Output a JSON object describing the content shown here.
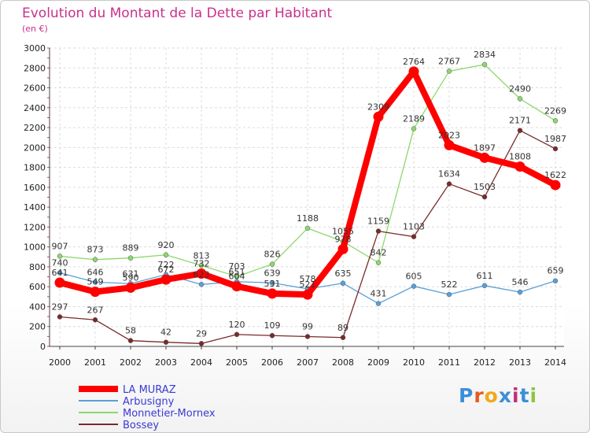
{
  "chart_data": {
    "type": "line",
    "title": "Evolution du Montant de la Dette par Habitant",
    "subtitle": "(en €)",
    "xlabel": "",
    "ylabel": "",
    "ylim": [
      0,
      3000
    ],
    "yticks": [
      0,
      200,
      400,
      600,
      800,
      1000,
      1200,
      1400,
      1600,
      1800,
      2000,
      2200,
      2400,
      2600,
      2800,
      3000
    ],
    "categories": [
      "2000",
      "2001",
      "2002",
      "2003",
      "2004",
      "2005",
      "2006",
      "2007",
      "2008",
      "2009",
      "2010",
      "2011",
      "2012",
      "2013",
      "2014"
    ],
    "grid": true,
    "legend_position": "bottom-left",
    "series": [
      {
        "name": "LA MURAZ",
        "color": "#ff0000",
        "values": [
          641,
          549,
          590,
          672,
          732,
          604,
          531,
          521,
          978,
          2309,
          2764,
          2023,
          1897,
          1808,
          1622
        ]
      },
      {
        "name": "Arbusigny",
        "color": "#5aa0d8",
        "values": [
          740,
          646,
          631,
          722,
          623,
          651,
          639,
          578,
          635,
          431,
          605,
          522,
          611,
          546,
          659
        ]
      },
      {
        "name": "Monnetier-Mornex",
        "color": "#8cd86c",
        "values": [
          907,
          873,
          889,
          920,
          813,
          703,
          826,
          1188,
          1055,
          842,
          2189,
          2767,
          2834,
          2490,
          2269
        ]
      },
      {
        "name": "Bossey",
        "color": "#7a2a2a",
        "values": [
          297,
          267,
          58,
          42,
          29,
          120,
          109,
          99,
          89,
          1159,
          1103,
          1634,
          1503,
          2171,
          1987
        ]
      }
    ]
  },
  "logo": {
    "text": "Proxiti",
    "letters": [
      "P",
      "r",
      "o",
      "x",
      "i",
      "t",
      "i"
    ],
    "colors": [
      "#3b8fd8",
      "#e85a1e",
      "#f2a81c",
      "#3b8fd8",
      "#c03078",
      "#3b8fd8",
      "#8cc63e"
    ]
  }
}
